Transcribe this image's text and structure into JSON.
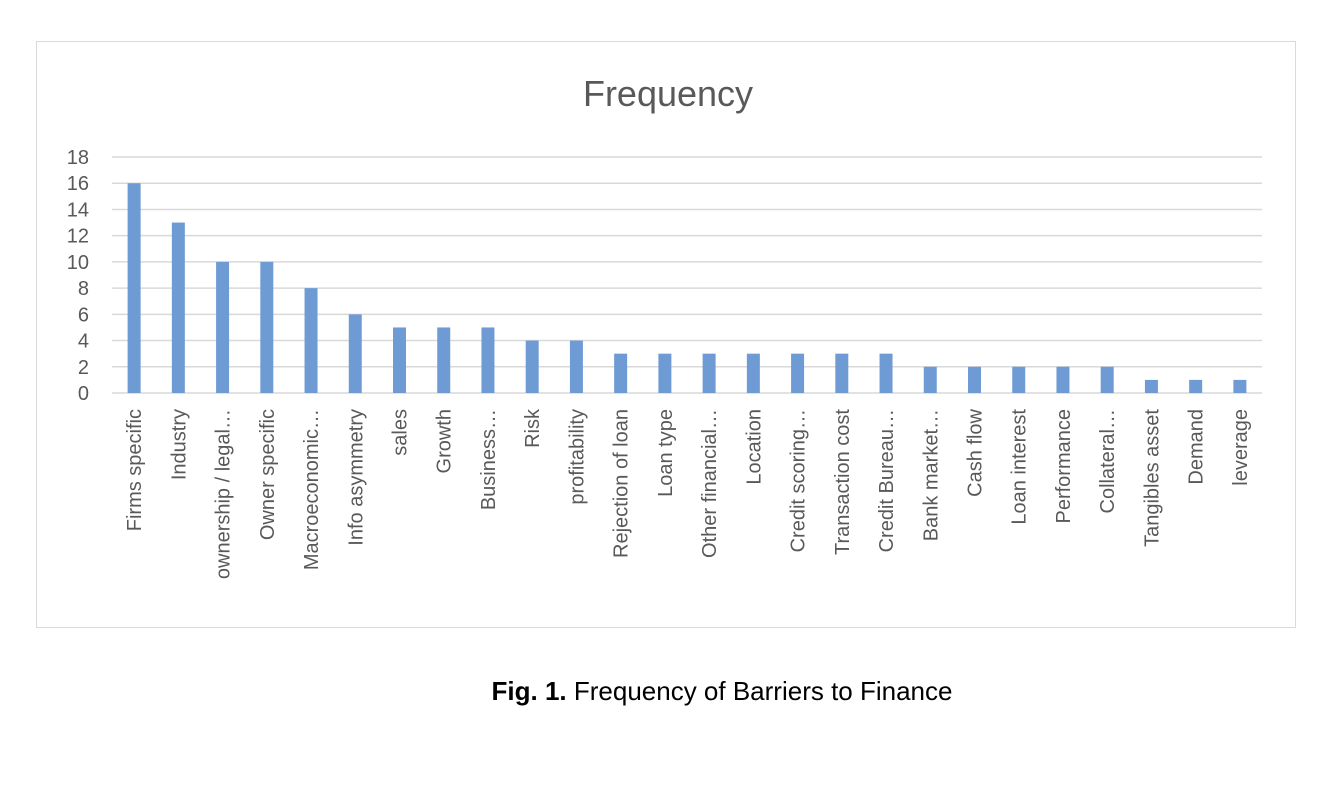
{
  "chart_data": {
    "type": "bar",
    "title": "Frequency",
    "categories": [
      "Firms specific",
      "Industry",
      "ownership / legal…",
      "Owner specific",
      "Macroeconomic…",
      "Info asymmetry",
      "sales",
      "Growth",
      "Business…",
      "Risk",
      "profitability",
      "Rejection of loan",
      "Loan type",
      "Other financial…",
      "Location",
      "Credit scoring…",
      "Transaction cost",
      "Credit Bureau…",
      "Bank market…",
      "Cash flow",
      "Loan interest",
      "Performance",
      "Collateral…",
      "Tangibles asset",
      "Demand",
      "leverage"
    ],
    "values": [
      16,
      13,
      10,
      10,
      8,
      6,
      5,
      5,
      5,
      4,
      4,
      3,
      3,
      3,
      3,
      3,
      3,
      3,
      2,
      2,
      2,
      2,
      2,
      1,
      1,
      1
    ],
    "ylim": [
      0,
      18
    ],
    "yticks": [
      0,
      2,
      4,
      6,
      8,
      10,
      12,
      14,
      16,
      18
    ],
    "xlabel": "",
    "ylabel": "",
    "grid": true,
    "legend": "none",
    "bar_color": "#6f9bd4",
    "grid_color": "#d9d9d9"
  },
  "caption": {
    "number": "Fig. 1.",
    "text": " Frequency of Barriers to Finance"
  }
}
